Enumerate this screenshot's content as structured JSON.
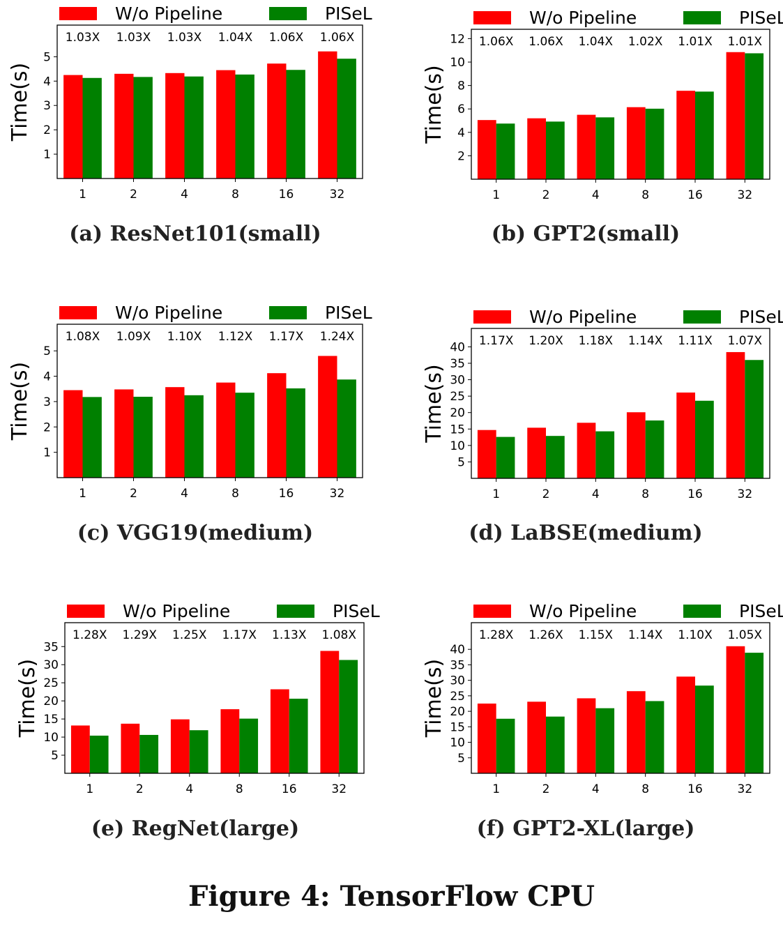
{
  "figure_caption": "Figure 4: TensorFlow CPU",
  "colors": {
    "wo_pipeline": "#ff0000",
    "pisel": "#008000"
  },
  "chart_data": [
    {
      "type": "bar",
      "caption": "(a) ResNet101(small)",
      "ylabel": "Time(s)",
      "categories": [
        "1",
        "2",
        "4",
        "8",
        "16",
        "32"
      ],
      "series": [
        {
          "name": "W/o Pipeline",
          "values": [
            4.25,
            4.3,
            4.33,
            4.45,
            4.72,
            5.22
          ]
        },
        {
          "name": "PISeL",
          "values": [
            4.13,
            4.17,
            4.19,
            4.27,
            4.46,
            4.92
          ]
        }
      ],
      "speedups": [
        "1.03X",
        "1.03X",
        "1.03X",
        "1.04X",
        "1.06X",
        "1.06X"
      ],
      "yticks": [
        1,
        2,
        3,
        4,
        5
      ],
      "ylim": [
        0,
        6.3
      ],
      "legend": "top"
    },
    {
      "type": "bar",
      "caption": "(b) GPT2(small)",
      "ylabel": "Time(s)",
      "categories": [
        "1",
        "2",
        "4",
        "8",
        "16",
        "32"
      ],
      "series": [
        {
          "name": "W/o Pipeline",
          "values": [
            5.05,
            5.2,
            5.5,
            6.15,
            7.55,
            10.85
          ]
        },
        {
          "name": "PISeL",
          "values": [
            4.75,
            4.92,
            5.28,
            6.02,
            7.48,
            10.75
          ]
        }
      ],
      "speedups": [
        "1.06X",
        "1.06X",
        "1.04X",
        "1.02X",
        "1.01X",
        "1.01X"
      ],
      "yticks": [
        2,
        4,
        6,
        8,
        10,
        12
      ],
      "ylim": [
        0,
        12.8
      ],
      "legend": "top"
    },
    {
      "type": "bar",
      "caption": "(c) VGG19(medium)",
      "ylabel": "Time(s)",
      "categories": [
        "1",
        "2",
        "4",
        "8",
        "16",
        "32"
      ],
      "series": [
        {
          "name": "W/o Pipeline",
          "values": [
            3.45,
            3.48,
            3.57,
            3.75,
            4.12,
            4.8
          ]
        },
        {
          "name": "PISeL",
          "values": [
            3.18,
            3.19,
            3.25,
            3.35,
            3.52,
            3.87
          ]
        }
      ],
      "speedups": [
        "1.08X",
        "1.09X",
        "1.10X",
        "1.12X",
        "1.17X",
        "1.24X"
      ],
      "yticks": [
        1,
        2,
        3,
        4,
        5
      ],
      "ylim": [
        0,
        6.05
      ],
      "legend": "top"
    },
    {
      "type": "bar",
      "caption": "(d) LaBSE(medium)",
      "ylabel": "Time(s)",
      "categories": [
        "1",
        "2",
        "4",
        "8",
        "16",
        "32"
      ],
      "series": [
        {
          "name": "W/o Pipeline",
          "values": [
            14.7,
            15.4,
            16.9,
            20.1,
            26.1,
            38.4
          ]
        },
        {
          "name": "PISeL",
          "values": [
            12.6,
            12.9,
            14.3,
            17.6,
            23.6,
            36.0
          ]
        }
      ],
      "speedups": [
        "1.17X",
        "1.20X",
        "1.18X",
        "1.14X",
        "1.11X",
        "1.07X"
      ],
      "yticks": [
        5,
        10,
        15,
        20,
        25,
        30,
        35,
        40
      ],
      "ylim": [
        0,
        45.6
      ],
      "legend": "top"
    },
    {
      "type": "bar",
      "caption": "(e) RegNet(large)",
      "ylabel": "Time(s)",
      "categories": [
        "1",
        "2",
        "4",
        "8",
        "16",
        "32"
      ],
      "series": [
        {
          "name": "W/o Pipeline",
          "values": [
            13.2,
            13.7,
            14.9,
            17.7,
            23.2,
            33.8
          ]
        },
        {
          "name": "PISeL",
          "values": [
            10.4,
            10.6,
            11.9,
            15.1,
            20.6,
            31.3
          ]
        }
      ],
      "speedups": [
        "1.28X",
        "1.29X",
        "1.25X",
        "1.17X",
        "1.13X",
        "1.08X"
      ],
      "yticks": [
        5,
        10,
        15,
        20,
        25,
        30,
        35
      ],
      "ylim": [
        0,
        41.6
      ],
      "legend": "top"
    },
    {
      "type": "bar",
      "caption": "(f) GPT2-XL(large)",
      "ylabel": "Time(s)",
      "categories": [
        "1",
        "2",
        "4",
        "8",
        "16",
        "32"
      ],
      "series": [
        {
          "name": "W/o Pipeline",
          "values": [
            22.5,
            23.1,
            24.2,
            26.5,
            31.2,
            41.0
          ]
        },
        {
          "name": "PISeL",
          "values": [
            17.6,
            18.3,
            21.0,
            23.3,
            28.3,
            38.9
          ]
        }
      ],
      "speedups": [
        "1.28X",
        "1.26X",
        "1.15X",
        "1.14X",
        "1.10X",
        "1.05X"
      ],
      "yticks": [
        5,
        10,
        15,
        20,
        25,
        30,
        35,
        40
      ],
      "ylim": [
        0,
        48.6
      ],
      "legend": "top"
    }
  ]
}
